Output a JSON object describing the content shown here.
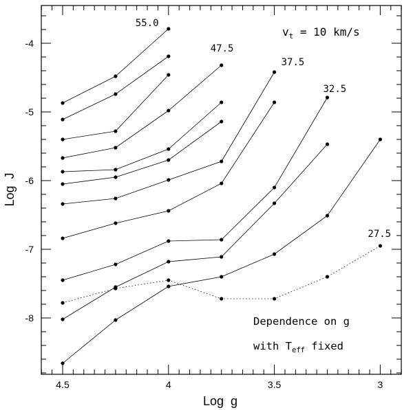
{
  "chart_data": {
    "type": "line",
    "title": "",
    "xlabel": "Log  g",
    "ylabel": "Log  J",
    "xlim": [
      4.6,
      2.9
    ],
    "ylim": [
      -8.8,
      -3.5
    ],
    "x_ticks": [
      4.5,
      4,
      3.5,
      3
    ],
    "x_tick_labels": [
      "4.5",
      "4",
      "3.5",
      "3"
    ],
    "y_ticks": [
      -4,
      -5,
      -6,
      -7,
      -8
    ],
    "y_tick_labels": [
      "-4",
      "-5",
      "-6",
      "-7",
      "-8"
    ],
    "grid": false,
    "annotation_vt": {
      "symbol": "v",
      "sub": "t",
      "text": " = 10 km/s"
    },
    "annotation_dependence": {
      "line1": "Dependence on g",
      "line2_prefix": "with T",
      "line2_sub": "eff",
      "line2_suffix": " fixed"
    },
    "series": [
      {
        "name": "55.0",
        "label": "55.0",
        "style": "solid",
        "x": [
          4.5,
          4.25,
          4.0
        ],
        "y": [
          -4.87,
          -4.48,
          -3.79
        ]
      },
      {
        "name": "s2",
        "label": "",
        "style": "solid",
        "x": [
          4.5,
          4.25,
          4.0
        ],
        "y": [
          -5.11,
          -4.74,
          -4.19
        ]
      },
      {
        "name": "s3",
        "label": "",
        "style": "solid",
        "x": [
          4.5,
          4.25,
          4.0
        ],
        "y": [
          -5.4,
          -5.28,
          -4.46
        ]
      },
      {
        "name": "47.5",
        "label": "47.5",
        "style": "solid",
        "x": [
          4.5,
          4.25,
          4.0,
          3.75
        ],
        "y": [
          -5.67,
          -5.52,
          -4.98,
          -4.32
        ]
      },
      {
        "name": "s5",
        "label": "",
        "style": "solid",
        "x": [
          4.5,
          4.25,
          4.0,
          3.75
        ],
        "y": [
          -5.87,
          -5.84,
          -5.54,
          -4.86
        ]
      },
      {
        "name": "s6",
        "label": "",
        "style": "solid",
        "x": [
          4.5,
          4.25,
          4.0,
          3.75
        ],
        "y": [
          -6.05,
          -5.95,
          -5.7,
          -5.14
        ]
      },
      {
        "name": "37.5",
        "label": "37.5",
        "style": "solid",
        "x": [
          4.5,
          4.25,
          4.0,
          3.75,
          3.5
        ],
        "y": [
          -6.34,
          -6.26,
          -5.99,
          -5.72,
          -4.42
        ]
      },
      {
        "name": "s8",
        "label": "",
        "style": "solid",
        "x": [
          4.5,
          4.25,
          4.0,
          3.75,
          3.5
        ],
        "y": [
          -6.84,
          -6.62,
          -6.44,
          -6.04,
          -4.86
        ]
      },
      {
        "name": "32.5",
        "label": "32.5",
        "style": "solid",
        "x": [
          4.5,
          4.25,
          4.0,
          3.75,
          3.5,
          3.25
        ],
        "y": [
          -7.45,
          -7.22,
          -6.88,
          -6.86,
          -6.1,
          -4.79
        ]
      },
      {
        "name": "s10",
        "label": "",
        "style": "solid",
        "x": [
          4.5,
          4.25,
          4.0,
          3.75,
          3.5,
          3.25
        ],
        "y": [
          -8.02,
          -7.55,
          -7.18,
          -7.11,
          -6.33,
          -5.47
        ]
      },
      {
        "name": "s11",
        "label": "",
        "style": "solid",
        "x": [
          4.5,
          4.25,
          4.0,
          3.75,
          3.5,
          3.25,
          3.0
        ],
        "y": [
          -8.66,
          -8.03,
          -7.54,
          -7.4,
          -7.07,
          -6.51,
          -5.4
        ]
      },
      {
        "name": "27.5",
        "label": "27.5",
        "style": "dotted",
        "x": [
          4.5,
          4.25,
          4.0,
          3.75,
          3.5,
          3.25,
          3.0
        ],
        "y": [
          -7.78,
          -7.57,
          -7.45,
          -7.72,
          -7.72,
          -7.4,
          -6.95
        ]
      }
    ]
  }
}
